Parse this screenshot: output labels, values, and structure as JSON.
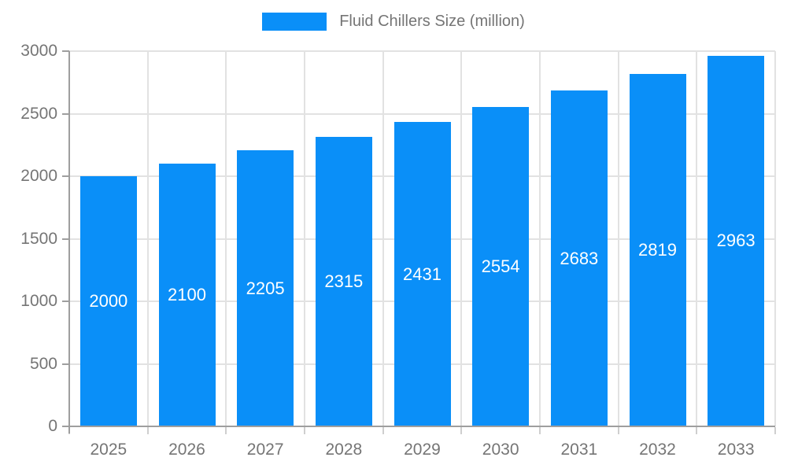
{
  "legend": {
    "label": "Fluid Chillers Size (million)"
  },
  "colors": {
    "bar": "#0a8ff8",
    "axis_line": "#9e9e9e",
    "gridline": "#e2e2e2",
    "tick_label_text": "#757575",
    "bar_label_text": "#ffffff",
    "legend_text": "#757575"
  },
  "chart_data": {
    "type": "bar",
    "title": "Fluid Chillers Size (million)",
    "categories": [
      "2025",
      "2026",
      "2027",
      "2028",
      "2029",
      "2030",
      "2031",
      "2032",
      "2033"
    ],
    "values": [
      2000,
      2100,
      2205,
      2315,
      2431,
      2554,
      2683,
      2819,
      2963
    ],
    "series": [
      {
        "name": "Fluid Chillers Size (million)",
        "values": [
          2000,
          2100,
          2205,
          2315,
          2431,
          2554,
          2683,
          2819,
          2963
        ]
      }
    ],
    "xlabel": "",
    "ylabel": "",
    "ylim": [
      0,
      3000
    ],
    "yticks": [
      0,
      500,
      1000,
      1500,
      2000,
      2500,
      3000
    ],
    "grid": true,
    "legend_position": "top",
    "bar_label_position": "center"
  }
}
